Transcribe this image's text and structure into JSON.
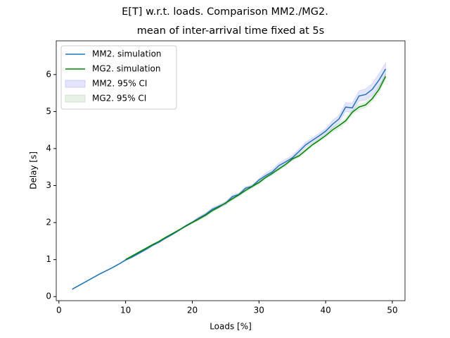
{
  "chart_data": {
    "type": "line",
    "title": "E[T] w.r.t. loads. Comparison MM2./MG2.",
    "subtitle": "mean of inter-arrival time fixed at 5s",
    "x_label": "Loads [%]",
    "y_label": "Delay [s]",
    "xlim": [
      -0.4,
      51.9
    ],
    "ylim": [
      -0.11,
      6.91
    ],
    "xticks": [
      0,
      10,
      20,
      30,
      40,
      50
    ],
    "yticks": [
      0,
      1,
      2,
      3,
      4,
      5,
      6
    ],
    "legend": "upper left",
    "series": [
      {
        "name": "MM2. simulation",
        "color": "#1f77b4",
        "ci_label": "MM2. 95% CI",
        "ci_color": "#0000ff",
        "x": [
          2,
          3,
          4,
          5,
          6,
          7,
          8,
          9,
          10,
          11,
          12,
          13,
          14,
          15,
          16,
          17,
          18,
          19,
          20,
          21,
          22,
          23,
          24,
          25,
          26,
          27,
          28,
          29,
          30,
          31,
          32,
          33,
          34,
          35,
          36,
          37,
          38,
          39,
          40,
          41,
          42,
          43,
          44,
          45,
          46,
          47,
          48,
          49
        ],
        "values": [
          0.2,
          0.3,
          0.4,
          0.5,
          0.6,
          0.69,
          0.78,
          0.88,
          0.99,
          1.07,
          1.17,
          1.27,
          1.38,
          1.47,
          1.58,
          1.68,
          1.79,
          1.91,
          2.01,
          2.12,
          2.22,
          2.36,
          2.44,
          2.52,
          2.7,
          2.76,
          2.93,
          2.98,
          3.15,
          3.27,
          3.37,
          3.54,
          3.64,
          3.75,
          3.92,
          4.1,
          4.22,
          4.34,
          4.47,
          4.65,
          4.8,
          5.12,
          5.1,
          5.42,
          5.46,
          5.6,
          5.85,
          6.15
        ],
        "ci": [
          0.01,
          0.01,
          0.01,
          0.01,
          0.01,
          0.01,
          0.01,
          0.01,
          0.02,
          0.02,
          0.02,
          0.02,
          0.02,
          0.02,
          0.02,
          0.02,
          0.02,
          0.02,
          0.02,
          0.04,
          0.04,
          0.04,
          0.04,
          0.04,
          0.04,
          0.04,
          0.04,
          0.04,
          0.04,
          0.07,
          0.07,
          0.07,
          0.07,
          0.07,
          0.07,
          0.07,
          0.07,
          0.07,
          0.07,
          0.1,
          0.1,
          0.12,
          0.13,
          0.14,
          0.15,
          0.16,
          0.17,
          0.17
        ]
      },
      {
        "name": "MG2. simulation",
        "color": "#008000",
        "ci_label": "MG2. 95% CI",
        "ci_color": "#008000",
        "x": [
          10,
          11,
          12,
          13,
          14,
          15,
          16,
          17,
          18,
          19,
          20,
          21,
          22,
          23,
          24,
          25,
          26,
          27,
          28,
          29,
          30,
          31,
          32,
          33,
          34,
          35,
          36,
          37,
          38,
          39,
          40,
          41,
          42,
          43,
          44,
          45,
          46,
          47,
          48,
          49
        ],
        "values": [
          1.0,
          1.1,
          1.2,
          1.3,
          1.4,
          1.49,
          1.6,
          1.7,
          1.8,
          1.9,
          2.0,
          2.1,
          2.2,
          2.32,
          2.42,
          2.53,
          2.64,
          2.75,
          2.87,
          2.98,
          3.08,
          3.22,
          3.33,
          3.45,
          3.57,
          3.72,
          3.8,
          3.95,
          4.1,
          4.22,
          4.35,
          4.5,
          4.62,
          4.75,
          4.98,
          5.12,
          5.18,
          5.35,
          5.6,
          5.95
        ],
        "ci": [
          0.02,
          0.02,
          0.02,
          0.02,
          0.02,
          0.02,
          0.02,
          0.02,
          0.02,
          0.02,
          0.02,
          0.04,
          0.04,
          0.04,
          0.04,
          0.04,
          0.04,
          0.04,
          0.04,
          0.04,
          0.04,
          0.04,
          0.04,
          0.04,
          0.04,
          0.04,
          0.04,
          0.04,
          0.04,
          0.04,
          0.04,
          0.06,
          0.06,
          0.06,
          0.06,
          0.07,
          0.07,
          0.07,
          0.08,
          0.08
        ]
      }
    ]
  }
}
